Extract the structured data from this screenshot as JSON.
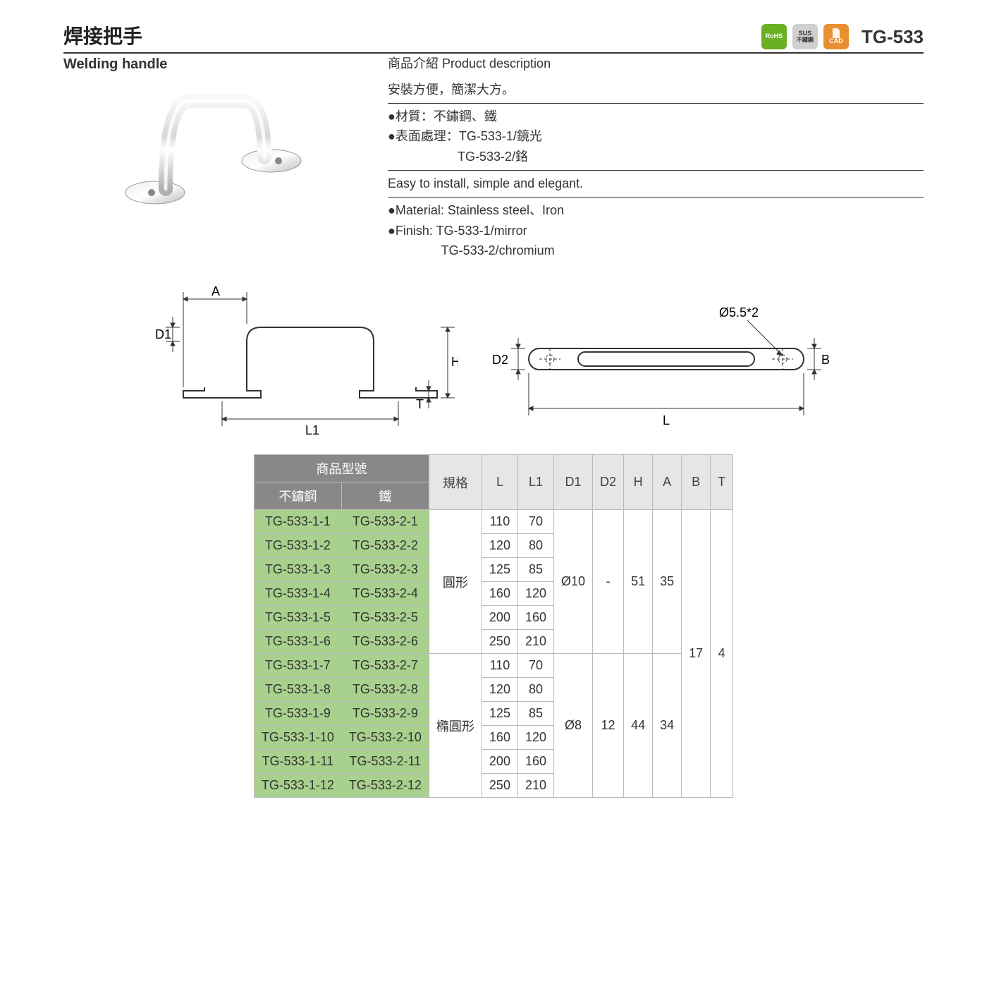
{
  "header": {
    "title_cn": "焊接把手",
    "title_en": "Welding handle",
    "product_code": "TG-533",
    "badges": {
      "rohs": "RoHS",
      "sus_top": "SUS",
      "sus_bottom": "不鏽鋼",
      "cad": "CAD"
    }
  },
  "description": {
    "heading": "商品介紹 Product description",
    "intro_cn": "安裝方便，簡潔大方。",
    "material_cn": "●材質：不鏽鋼、鐵",
    "finish_cn_1": "●表面處理：TG-533-1/鏡光",
    "finish_cn_2": "TG-533-2/鉻",
    "intro_en": "Easy to install, simple and elegant.",
    "material_en": "●Material: Stainless steel、Iron",
    "finish_en_1": "●Finish: TG-533-1/mirror",
    "finish_en_2": "TG-533-2/chromium"
  },
  "drawing_labels": {
    "A": "A",
    "D1": "D1",
    "H": "H",
    "T": "T",
    "L1": "L1",
    "D2": "D2",
    "hole": "Ø5.5*2",
    "B": "B",
    "L": "L"
  },
  "table": {
    "headers": {
      "model": "商品型號",
      "stainless": "不鏽鋼",
      "iron": "鐵",
      "spec": "規格",
      "L": "L",
      "L1": "L1",
      "D1": "D1",
      "D2": "D2",
      "H": "H",
      "A": "A",
      "B": "B",
      "T": "T"
    },
    "shape1": "圓形",
    "shape2": "橢圓形",
    "group1_shared": {
      "D1": "Ø10",
      "D2": "-",
      "H": "51",
      "A": "35"
    },
    "group2_shared": {
      "D1": "Ø8",
      "D2": "12",
      "H": "44",
      "A": "34"
    },
    "all_shared": {
      "B": "17",
      "T": "4"
    },
    "rows": [
      {
        "s": "TG-533-1-1",
        "i": "TG-533-2-1",
        "L": "110",
        "L1": "70"
      },
      {
        "s": "TG-533-1-2",
        "i": "TG-533-2-2",
        "L": "120",
        "L1": "80"
      },
      {
        "s": "TG-533-1-3",
        "i": "TG-533-2-3",
        "L": "125",
        "L1": "85"
      },
      {
        "s": "TG-533-1-4",
        "i": "TG-533-2-4",
        "L": "160",
        "L1": "120"
      },
      {
        "s": "TG-533-1-5",
        "i": "TG-533-2-5",
        "L": "200",
        "L1": "160"
      },
      {
        "s": "TG-533-1-6",
        "i": "TG-533-2-6",
        "L": "250",
        "L1": "210"
      },
      {
        "s": "TG-533-1-7",
        "i": "TG-533-2-7",
        "L": "110",
        "L1": "70"
      },
      {
        "s": "TG-533-1-8",
        "i": "TG-533-2-8",
        "L": "120",
        "L1": "80"
      },
      {
        "s": "TG-533-1-9",
        "i": "TG-533-2-9",
        "L": "125",
        "L1": "85"
      },
      {
        "s": "TG-533-1-10",
        "i": "TG-533-2-10",
        "L": "160",
        "L1": "120"
      },
      {
        "s": "TG-533-1-11",
        "i": "TG-533-2-11",
        "L": "200",
        "L1": "160"
      },
      {
        "s": "TG-533-1-12",
        "i": "TG-533-2-12",
        "L": "250",
        "L1": "210"
      }
    ]
  },
  "colors": {
    "header_dark": "#888888",
    "header_light": "#e6e6e6",
    "cell_green": "#a9d18e",
    "border": "#bbbbbb",
    "rohs": "#6ab023",
    "sus": "#d0d0d0",
    "cad": "#e89030"
  }
}
